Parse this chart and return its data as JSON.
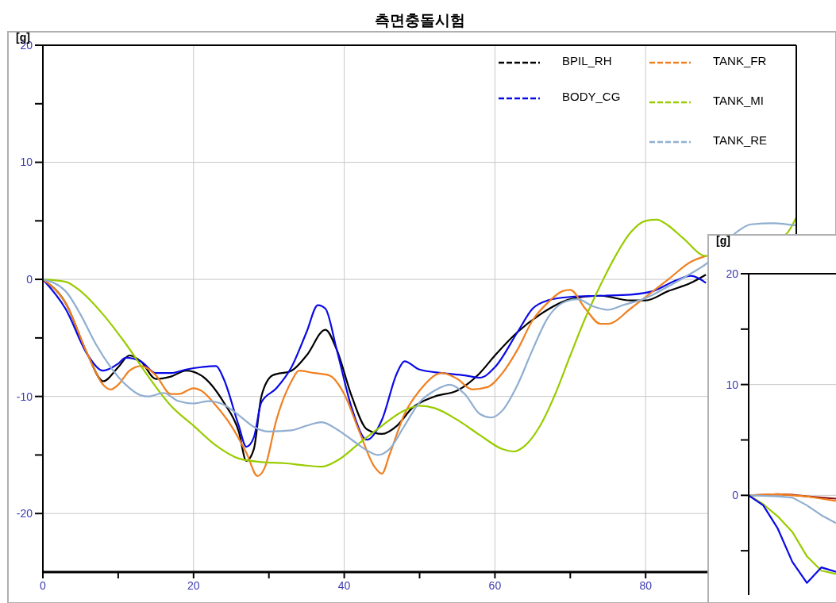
{
  "chart_data": [
    {
      "type": "line",
      "title": "측면충돌시험",
      "ylabel": "[g]",
      "xlim": [
        0,
        100
      ],
      "ylim": [
        -25,
        20
      ],
      "xticks": [
        0,
        {
          "value": 10,
          "label": null
        },
        20,
        {
          "value": 30,
          "label": null
        },
        40,
        {
          "value": 50,
          "label": null
        },
        60,
        {
          "value": 70,
          "label": null
        },
        80
      ],
      "yticks": [
        -20,
        {
          "value": -15,
          "label": null
        },
        -10,
        {
          "value": -5,
          "label": null
        },
        0,
        {
          "value": 5,
          "label": null
        },
        10,
        {
          "value": 15,
          "label": null
        },
        20
      ],
      "grid": true,
      "legend": "top right",
      "line_style": "solid",
      "series": [
        {
          "name": "BPIL_RH",
          "color": "#000000",
          "x": [
            0,
            3,
            6,
            8,
            10,
            11.5,
            13,
            15,
            17,
            19,
            21,
            24,
            26,
            27,
            28,
            29,
            30.5,
            33,
            35,
            37.5,
            39,
            41,
            43,
            45,
            47,
            49,
            52,
            55,
            58,
            60,
            63,
            66,
            70,
            74,
            78,
            80,
            83,
            86,
            88
          ],
          "values": [
            0,
            -2,
            -6.5,
            -8.7,
            -7.5,
            -6.5,
            -7,
            -8.5,
            -8.3,
            -7.8,
            -8.2,
            -10.5,
            -13,
            -15.5,
            -14.5,
            -10,
            -8.2,
            -7.8,
            -6.5,
            -4.3,
            -6,
            -10,
            -12.8,
            -13.2,
            -12.5,
            -11,
            -10,
            -9.5,
            -8,
            -6.5,
            -4.5,
            -3,
            -1.7,
            -1.4,
            -1.8,
            -1.8,
            -1,
            -0.3,
            0.4
          ]
        },
        {
          "name": "BODY_CG",
          "color": "#0a0ae6",
          "x": [
            0,
            3,
            6,
            8,
            10,
            11,
            13,
            15,
            17,
            19,
            21,
            23,
            24,
            26,
            27,
            28,
            29,
            31,
            33,
            35,
            36.5,
            37.5,
            39,
            41,
            43,
            45,
            47,
            48,
            50,
            53,
            56,
            58,
            60,
            63,
            65,
            67,
            70,
            74,
            78,
            81,
            84,
            86,
            88
          ],
          "values": [
            0,
            -2.5,
            -6.5,
            -7.8,
            -7.2,
            -6.7,
            -7,
            -8,
            -8,
            -7.7,
            -7.5,
            -7.4,
            -8.5,
            -12.5,
            -14.3,
            -13.5,
            -10.5,
            -9.3,
            -7.5,
            -4.5,
            -2.2,
            -2.5,
            -6,
            -11,
            -13.7,
            -12,
            -8,
            -7,
            -7.7,
            -8,
            -8.2,
            -8.4,
            -7.5,
            -4.5,
            -2.5,
            -1.8,
            -1.5,
            -1.4,
            -1.3,
            -1,
            -0.1,
            0.3,
            -0.3
          ]
        },
        {
          "name": "TANK_FR",
          "color": "#f08020",
          "x": [
            0,
            3,
            6,
            8,
            9,
            10,
            11.5,
            13,
            15,
            17,
            18,
            20,
            21,
            23,
            25,
            27,
            28.5,
            29.5,
            31,
            33,
            34,
            36,
            38,
            40,
            42,
            44,
            45,
            46,
            48,
            50,
            53,
            55,
            57,
            59,
            61,
            63,
            65,
            67,
            69,
            70,
            72,
            74,
            75,
            78,
            80,
            83,
            86,
            88
          ],
          "values": [
            0,
            -2,
            -6.5,
            -9,
            -9.4,
            -9,
            -7.8,
            -7.4,
            -8.2,
            -9.8,
            -9.8,
            -9.3,
            -9.5,
            -10.8,
            -12.5,
            -14.8,
            -16.8,
            -16,
            -12,
            -8.7,
            -7.8,
            -8,
            -8.2,
            -9.8,
            -13,
            -16,
            -16.6,
            -15,
            -11.5,
            -9.5,
            -8,
            -8.5,
            -9.4,
            -9.2,
            -8,
            -6,
            -3.5,
            -2,
            -1,
            -0.9,
            -2.5,
            -3.8,
            -3.8,
            -2.5,
            -1.5,
            0,
            1.5,
            2
          ]
        },
        {
          "name": "TANK_MI",
          "color": "#99cc00",
          "x": [
            0,
            3,
            5,
            8,
            11,
            14,
            17,
            20,
            23,
            26,
            29,
            32,
            35,
            37,
            39,
            42,
            45,
            48,
            50,
            52,
            55,
            58,
            61,
            62.5,
            64,
            66,
            68,
            70,
            72,
            74,
            76,
            78,
            80,
            81.5,
            83,
            85,
            88,
            98.5,
            100
          ],
          "values": [
            0,
            -0.2,
            -1,
            -3,
            -5.5,
            -8.3,
            -10.8,
            -12.5,
            -14.2,
            -15.3,
            -15.6,
            -15.7,
            -15.9,
            -16,
            -15.5,
            -14,
            -12.5,
            -11.2,
            -10.8,
            -11,
            -12,
            -13.3,
            -14.5,
            -14.7,
            -14.2,
            -12.5,
            -9.8,
            -6.5,
            -3.3,
            -0.5,
            2,
            4,
            5,
            5.1,
            4.6,
            3.5,
            2,
            3.8,
            5.3
          ]
        },
        {
          "name": "TANK_RE",
          "color": "#90aed0",
          "x": [
            0,
            3,
            5,
            7,
            9,
            11,
            13,
            14,
            16,
            18,
            20,
            22,
            24,
            26,
            28,
            30,
            33,
            35,
            37,
            39,
            41,
            43,
            44.5,
            46,
            48,
            50,
            52,
            54,
            56,
            58,
            59.5,
            61,
            63,
            65,
            67,
            69,
            71,
            73,
            75,
            77,
            80,
            83,
            86,
            88,
            92,
            94,
            97,
            100
          ],
          "values": [
            0,
            -1,
            -3,
            -5.5,
            -7.5,
            -9,
            -9.9,
            -10,
            -9.7,
            -10.4,
            -10.6,
            -10.4,
            -10.7,
            -11.6,
            -12.6,
            -13,
            -12.9,
            -12.5,
            -12.2,
            -12.8,
            -13.7,
            -14.6,
            -15,
            -14.5,
            -12.5,
            -10.5,
            -9.5,
            -9,
            -9.8,
            -11.5,
            -11.8,
            -11.2,
            -9,
            -6,
            -3.3,
            -2,
            -1.7,
            -2.3,
            -2.6,
            -2.2,
            -1.6,
            -0.6,
            0.5,
            1.3,
            4,
            4.7,
            4.8,
            4.6
          ]
        }
      ]
    },
    {
      "type": "line",
      "ylabel": "[g]",
      "categories": [
        null,
        null,
        null,
        null,
        null,
        null,
        null
      ],
      "ylim": [
        -9,
        20
      ],
      "tick_labels": "y",
      "yticks": [
        {
          "value": -5,
          "label": null
        },
        0,
        {
          "value": 5,
          "label": null
        },
        10,
        {
          "value": 15,
          "label": null
        },
        20
      ],
      "grid": "y",
      "line_style": "solid",
      "series": [
        {
          "color": "#8b1010",
          "values": [
            0,
            0.05,
            0.1,
            0.05,
            -0.1,
            -0.2,
            -0.3
          ]
        },
        {
          "color": "#f08020",
          "values": [
            0,
            0.05,
            0.1,
            0,
            -0.1,
            -0.3,
            -0.5
          ]
        },
        {
          "color": "#90aed0",
          "values": [
            0,
            -0.05,
            -0.1,
            -0.2,
            -0.9,
            -1.8,
            -2.5
          ]
        },
        {
          "color": "#99cc00",
          "values": [
            0,
            -0.8,
            -1.9,
            -3.3,
            -5.5,
            -6.8,
            -7.1
          ]
        },
        {
          "color": "#0a0ae6",
          "values": [
            0,
            -0.9,
            -3,
            -6,
            -7.9,
            -6.5,
            -6.9
          ]
        }
      ]
    }
  ]
}
